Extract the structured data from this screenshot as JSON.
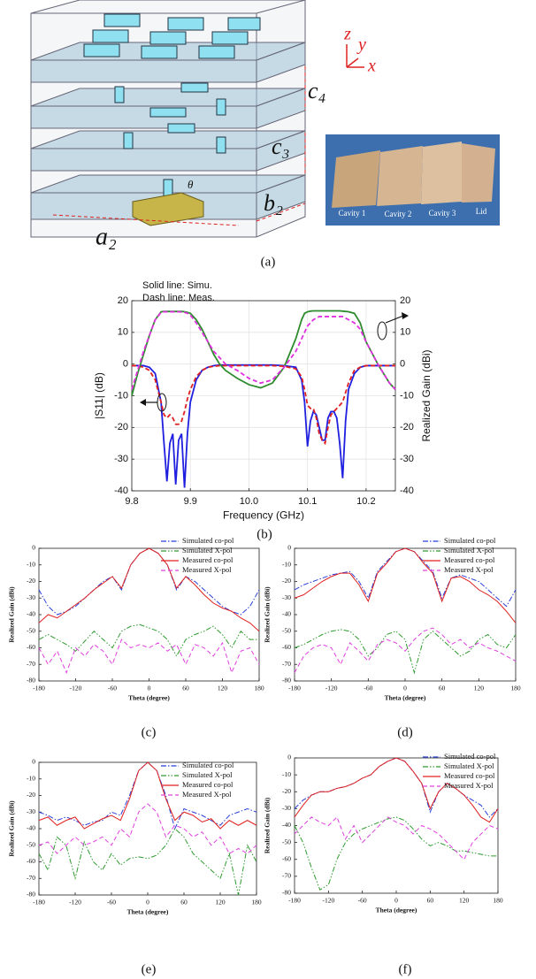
{
  "panel_a": {
    "axes_labels": [
      "z",
      "y",
      "x"
    ],
    "dimension_labels": [
      "c₄",
      "c₃",
      "b₂",
      "a₂",
      "θ"
    ],
    "photo_labels": [
      "Cavity 1",
      "Cavity 2",
      "Cavity 3",
      "Lid"
    ]
  },
  "captions": [
    "(a)",
    "(b)",
    "(c)",
    "(d)",
    "(e)",
    "(f)"
  ],
  "chart_data": [
    {
      "type": "line",
      "annotations": [
        "Solid line: Simu.",
        "Dash line: Meas."
      ],
      "x_label": "Frequency (GHz)",
      "y_label": "|S11| (dB)",
      "y2_label": "Realized Gain (dBi)",
      "x": [
        9.8,
        9.81,
        9.82,
        9.83,
        9.84,
        9.85,
        9.855,
        9.86,
        9.865,
        9.87,
        9.875,
        9.88,
        9.885,
        9.89,
        9.895,
        9.9,
        9.91,
        9.92,
        9.93,
        9.94,
        9.95,
        9.96,
        9.98,
        10,
        10.02,
        10.04,
        10.06,
        10.08,
        10.09,
        10.095,
        10.1,
        10.105,
        10.11,
        10.115,
        10.12,
        10.125,
        10.13,
        10.135,
        10.14,
        10.145,
        10.15,
        10.155,
        10.16,
        10.165,
        10.17,
        10.18,
        10.19,
        10.2,
        10.22,
        10.24,
        10.25
      ],
      "xlim": [
        9.8,
        10.25
      ],
      "xticks": [
        9.8,
        9.9,
        {
          "value": 10,
          "label": "10.0"
        },
        10.1,
        10.2
      ],
      "ylim": [
        -40,
        20
      ],
      "yticks": [
        -40,
        -30,
        -20,
        -10,
        0,
        10,
        20
      ],
      "y2lim": [
        -40,
        20
      ],
      "y2ticks": [
        -40,
        -30,
        -20,
        -10,
        0,
        10,
        20
      ],
      "grid": true,
      "series": [
        {
          "color": "#1f1fe0",
          "style": "solid",
          "values": [
            -0.5,
            -0.5,
            -0.5,
            -1,
            -3,
            -12,
            -25,
            -37,
            -25,
            -22,
            -38,
            -24,
            -22,
            -39,
            -22,
            -12,
            -5,
            -2,
            -1,
            -0.5,
            -0.3,
            -0.3,
            -0.3,
            -0.3,
            -0.3,
            -0.3,
            -0.5,
            -1,
            -5,
            -12,
            -26,
            -18,
            -15,
            -16,
            -20,
            -24,
            -24,
            -17,
            -15,
            -15,
            -17,
            -25,
            -36,
            -18,
            -8,
            -3,
            -1,
            -0.5,
            -0.5,
            -0.5,
            -0.5
          ]
        },
        {
          "color": "#e02020",
          "style": "dash",
          "values": [
            -0.5,
            -0.5,
            -1,
            -2,
            -5,
            -12,
            -16,
            -17,
            -16,
            -17,
            -19,
            -19,
            -18,
            -15,
            -11,
            -8,
            -4,
            -2,
            -1,
            -0.7,
            -0.5,
            -0.5,
            -0.5,
            -0.5,
            -0.5,
            -0.5,
            -0.7,
            -1.5,
            -4,
            -8,
            -13,
            -14,
            -14,
            -17,
            -22,
            -24,
            -25,
            -20,
            -16,
            -15,
            -14,
            -13,
            -12,
            -9,
            -6,
            -2,
            -1,
            -0.5,
            -0.5,
            -0.5,
            -0.5
          ]
        },
        {
          "color": "#2e8b2e",
          "style": "solid",
          "axis": "y2",
          "values": [
            -10,
            -3,
            3,
            9,
            14,
            16.5,
            16.6,
            16.6,
            16.6,
            16.6,
            16.6,
            16.6,
            16.6,
            16.5,
            16.3,
            16,
            14,
            11,
            7,
            3,
            0,
            -2,
            -4.5,
            -6.5,
            -7.5,
            -6,
            -1,
            8,
            14,
            16,
            16.5,
            16.7,
            16.8,
            16.8,
            16.8,
            16.8,
            16.8,
            16.8,
            16.8,
            16.8,
            16.8,
            16.8,
            16.7,
            16.6,
            16.5,
            16,
            13,
            7,
            0,
            -6,
            -8
          ]
        },
        {
          "color": "#e030e0",
          "style": "dash",
          "axis": "y2",
          "values": [
            -8,
            -2,
            4,
            9,
            14,
            16.3,
            16.5,
            16.5,
            16.5,
            16.5,
            16.5,
            16.5,
            16.4,
            16.3,
            16,
            15.5,
            13,
            10,
            7,
            4,
            2,
            0,
            -2,
            -4.5,
            -6,
            -5,
            -1,
            4,
            8,
            10,
            12,
            13,
            14,
            14.5,
            15,
            15,
            15,
            15,
            15,
            15,
            15,
            15,
            15,
            14.5,
            14,
            13,
            11,
            7,
            0,
            -6,
            -8
          ]
        }
      ]
    },
    {
      "type": "line",
      "x_label": "Theta (degree)",
      "y_label": "Realized Gain (dBi)",
      "x": [
        -180,
        -165,
        -150,
        -135,
        -120,
        -105,
        -90,
        -75,
        -60,
        -45,
        -30,
        -15,
        0,
        15,
        30,
        45,
        60,
        75,
        90,
        105,
        120,
        135,
        150,
        165,
        180
      ],
      "xlim": [
        -180,
        180
      ],
      "xticks": [
        -180,
        -120,
        -60,
        0,
        60,
        120,
        180
      ],
      "ylim": [
        -80,
        0
      ],
      "yticks": [
        -80,
        -70,
        -60,
        -50,
        -40,
        -30,
        -20,
        -10,
        0
      ],
      "grid": false,
      "legend": "top-right",
      "series": [
        {
          "name": "Simulated co-pol",
          "color": "#2b3fd6",
          "style": "dash-dot",
          "values": [
            -25,
            -35,
            -40,
            -38,
            -35,
            -30,
            -25,
            -20,
            -17,
            -25,
            -10,
            -3,
            0,
            -3,
            -10,
            -25,
            -17,
            -20,
            -25,
            -30,
            -35,
            -38,
            -40,
            -35,
            -25
          ]
        },
        {
          "name": "Simulated X-pol",
          "color": "#2e9a2e",
          "style": "dash-dot-dot",
          "values": [
            -55,
            -52,
            -55,
            -58,
            -62,
            -56,
            -50,
            -55,
            -60,
            -50,
            -47,
            -46,
            -48,
            -50,
            -55,
            -65,
            -55,
            -52,
            -50,
            -47,
            -52,
            -60,
            -50,
            -55,
            -55
          ]
        },
        {
          "name": "Measured co-pol",
          "color": "#e02020",
          "style": "solid",
          "values": [
            -45,
            -40,
            -42,
            -38,
            -34,
            -30,
            -25,
            -21,
            -17,
            -24,
            -10,
            -3,
            0,
            -3,
            -10,
            -24,
            -17,
            -22,
            -28,
            -33,
            -36,
            -38,
            -42,
            -45,
            -50
          ]
        },
        {
          "name": "Measured X-pol",
          "color": "#e040e0",
          "style": "dash",
          "values": [
            -60,
            -70,
            -62,
            -75,
            -60,
            -65,
            -58,
            -62,
            -70,
            -55,
            -60,
            -58,
            -60,
            -57,
            -62,
            -58,
            -70,
            -58,
            -60,
            -65,
            -57,
            -75,
            -62,
            -60,
            -70
          ]
        }
      ]
    },
    {
      "type": "line",
      "x_label": "Theta (degree)",
      "y_label": "Realized Gain (dBi)",
      "x": [
        -180,
        -165,
        -150,
        -135,
        -120,
        -105,
        -90,
        -75,
        -60,
        -45,
        -30,
        -15,
        0,
        15,
        30,
        45,
        60,
        75,
        90,
        105,
        120,
        135,
        150,
        165,
        180
      ],
      "xlim": [
        -180,
        180
      ],
      "xticks": [
        -180,
        -120,
        -60,
        0,
        60,
        120,
        180
      ],
      "ylim": [
        -80,
        0
      ],
      "yticks": [
        -80,
        -70,
        -60,
        -50,
        -40,
        -30,
        -20,
        -10,
        0
      ],
      "grid": false,
      "legend": "top-right",
      "series": [
        {
          "name": "Simulated co-pol",
          "color": "#2b3fd6",
          "style": "dash-dot",
          "values": [
            -25,
            -22,
            -20,
            -18,
            -16,
            -15,
            -14,
            -20,
            -30,
            -14,
            -8,
            -2,
            0,
            -2,
            -8,
            -14,
            -30,
            -18,
            -16,
            -18,
            -20,
            -25,
            -30,
            -35,
            -25
          ]
        },
        {
          "name": "Simulated X-pol",
          "color": "#2e9a2e",
          "style": "dash-dot-dot",
          "values": [
            -60,
            -58,
            -55,
            -52,
            -50,
            -49,
            -50,
            -55,
            -65,
            -60,
            -52,
            -50,
            -55,
            -75,
            -55,
            -50,
            -55,
            -60,
            -65,
            -62,
            -55,
            -52,
            -58,
            -60,
            -52
          ]
        },
        {
          "name": "Measured co-pol",
          "color": "#e02020",
          "style": "solid",
          "values": [
            -30,
            -28,
            -24,
            -20,
            -17,
            -15,
            -15,
            -22,
            -32,
            -15,
            -9,
            -2,
            0,
            -2,
            -9,
            -15,
            -32,
            -18,
            -17,
            -20,
            -25,
            -28,
            -32,
            -38,
            -45
          ]
        },
        {
          "name": "Measured X-pol",
          "color": "#e040e0",
          "style": "dash",
          "values": [
            -75,
            -65,
            -60,
            -58,
            -60,
            -70,
            -57,
            -62,
            -68,
            -58,
            -55,
            -57,
            -62,
            -55,
            -50,
            -48,
            -52,
            -58,
            -55,
            -60,
            -57,
            -60,
            -62,
            -65,
            -68
          ]
        }
      ]
    },
    {
      "type": "line",
      "x_label": "Theta (degree)",
      "y_label": "Realized Gain (dBi)",
      "x": [
        -180,
        -165,
        -150,
        -135,
        -120,
        -105,
        -90,
        -75,
        -60,
        -45,
        -30,
        -15,
        0,
        15,
        30,
        45,
        60,
        75,
        90,
        105,
        120,
        135,
        150,
        165,
        180
      ],
      "xlim": [
        -180,
        180
      ],
      "xticks": [
        -180,
        -120,
        -60,
        0,
        60,
        120,
        180
      ],
      "ylim": [
        -80,
        0
      ],
      "yticks": [
        -80,
        -70,
        -60,
        -50,
        -40,
        -30,
        -20,
        -10,
        0
      ],
      "grid": false,
      "legend": "top-right",
      "series": [
        {
          "name": "Simulated co-pol",
          "color": "#2b3fd6",
          "style": "dash-dot",
          "values": [
            -30,
            -32,
            -35,
            -33,
            -35,
            -38,
            -36,
            -35,
            -30,
            -32,
            -20,
            -5,
            0,
            -5,
            -20,
            -40,
            -28,
            -30,
            -32,
            -35,
            -38,
            -32,
            -30,
            -28,
            -30
          ]
        },
        {
          "name": "Simulated X-pol",
          "color": "#2e9a2e",
          "style": "dash-dot-dot",
          "values": [
            -55,
            -65,
            -45,
            -50,
            -70,
            -48,
            -60,
            -65,
            -55,
            -62,
            -58,
            -57,
            -58,
            -56,
            -50,
            -40,
            -45,
            -55,
            -60,
            -65,
            -70,
            -55,
            -80,
            -50,
            -60
          ]
        },
        {
          "name": "Measured co-pol",
          "color": "#e02020",
          "style": "solid",
          "values": [
            -35,
            -33,
            -38,
            -35,
            -33,
            -40,
            -37,
            -34,
            -32,
            -35,
            -22,
            -5,
            0,
            -5,
            -22,
            -35,
            -30,
            -32,
            -36,
            -34,
            -40,
            -35,
            -38,
            -35,
            -38
          ]
        },
        {
          "name": "Measured X-pol",
          "color": "#e040e0",
          "style": "dash",
          "values": [
            -50,
            -48,
            -55,
            -50,
            -45,
            -50,
            -48,
            -45,
            -50,
            -40,
            -45,
            -30,
            -25,
            -30,
            -45,
            -38,
            -40,
            -45,
            -42,
            -50,
            -45,
            -55,
            -52,
            -55,
            -50
          ]
        }
      ]
    },
    {
      "type": "line",
      "x_label": "Theta (degree)",
      "y_label": "Realized Gain (dBi)",
      "x": [
        -180,
        -165,
        -150,
        -135,
        -120,
        -105,
        -90,
        -75,
        -60,
        -45,
        -30,
        -15,
        0,
        15,
        30,
        45,
        60,
        75,
        90,
        105,
        120,
        135,
        150,
        165,
        180
      ],
      "xlim": [
        -180,
        180
      ],
      "xticks": [
        -180,
        -120,
        -60,
        0,
        60,
        120,
        180
      ],
      "ylim": [
        -80,
        0
      ],
      "yticks": [
        -80,
        -70,
        -60,
        -50,
        -40,
        -30,
        -20,
        -10,
        0
      ],
      "grid": false,
      "legend": "top-right",
      "series": [
        {
          "name": "Simulated co-pol",
          "color": "#2b3fd6",
          "style": "dash-dot",
          "values": [
            -30,
            -25,
            -22,
            -20,
            -20,
            -18,
            -17,
            -15,
            -12,
            -10,
            -5,
            -2,
            0,
            -2,
            -8,
            -15,
            -32,
            -20,
            -15,
            -18,
            -22,
            -25,
            -28,
            -35,
            -30
          ]
        },
        {
          "name": "Simulated X-pol",
          "color": "#2e9a2e",
          "style": "dash-dot-dot",
          "values": [
            -40,
            -50,
            -65,
            -78,
            -75,
            -60,
            -50,
            -45,
            -42,
            -40,
            -38,
            -36,
            -35,
            -37,
            -42,
            -48,
            -52,
            -50,
            -52,
            -55,
            -55,
            -56,
            -57,
            -58,
            -58
          ]
        },
        {
          "name": "Measured co-pol",
          "color": "#e02020",
          "style": "solid",
          "values": [
            -35,
            -28,
            -22,
            -20,
            -20,
            -18,
            -17,
            -15,
            -12,
            -10,
            -5,
            -2,
            0,
            -2,
            -8,
            -15,
            -30,
            -20,
            -15,
            -18,
            -22,
            -28,
            -35,
            -38,
            -30
          ]
        },
        {
          "name": "Measured X-pol",
          "color": "#e040e0",
          "style": "dash",
          "values": [
            -45,
            -40,
            -35,
            -38,
            -40,
            -35,
            -48,
            -40,
            -50,
            -45,
            -40,
            -35,
            -38,
            -40,
            -45,
            -40,
            -42,
            -45,
            -50,
            -55,
            -60,
            -50,
            -45,
            -40,
            -42
          ]
        }
      ]
    }
  ]
}
